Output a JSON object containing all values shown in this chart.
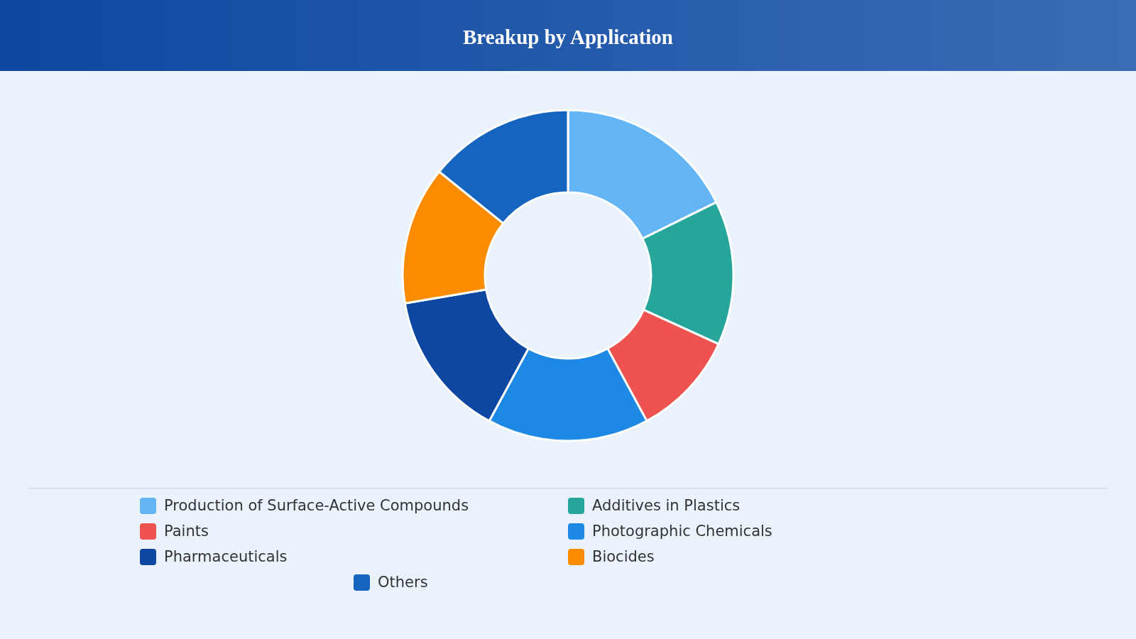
{
  "chart_data": {
    "type": "donut",
    "title": "Breakup by Application",
    "categories": [
      "Production of Surface-Active Compounds",
      "Additives in Plastics",
      "Paints",
      "Photographic Chemicals",
      "Pharmaceuticals",
      "Biocides",
      "Others"
    ],
    "values": [
      17.7,
      14.1,
      10.3,
      15.8,
      14.4,
      13.5,
      14.2
    ],
    "colors": [
      "#64b5f6",
      "#26a69a",
      "#ef5350",
      "#1e88e5",
      "#0d47a1",
      "#fb8c00",
      "#1565c0"
    ],
    "legend": "bottom"
  }
}
